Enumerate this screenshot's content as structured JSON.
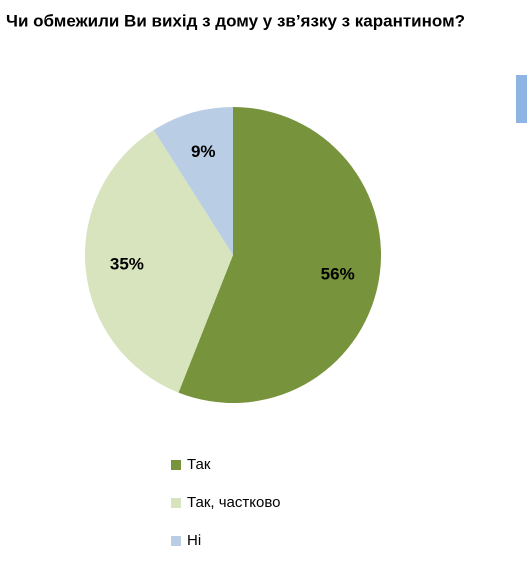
{
  "chart_data": {
    "type": "pie",
    "title": "Чи обмежили Ви вихід з дому у зв’язку з карантином?",
    "categories": [
      "Так",
      "Так, частково",
      "Ні"
    ],
    "values": [
      56,
      35,
      9
    ],
    "value_labels": [
      "56%",
      "35%",
      "9%"
    ],
    "colors": [
      "#77933c",
      "#d7e4bd",
      "#b9cde5"
    ]
  }
}
